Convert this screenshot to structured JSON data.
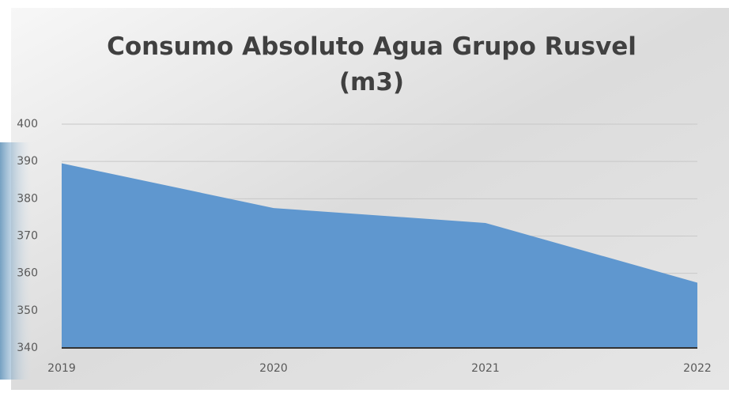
{
  "chart_data": {
    "type": "area",
    "title": "Consumo Absoluto Agua Grupo Rusvel (m3)",
    "categories": [
      "2019",
      "2020",
      "2021",
      "2022"
    ],
    "values": [
      389.5,
      377.5,
      373.5,
      357.5
    ],
    "color": "#5f97cf",
    "ylim": [
      340,
      400
    ],
    "yticks": [
      340,
      350,
      360,
      370,
      380,
      390,
      400
    ],
    "grid": true
  }
}
